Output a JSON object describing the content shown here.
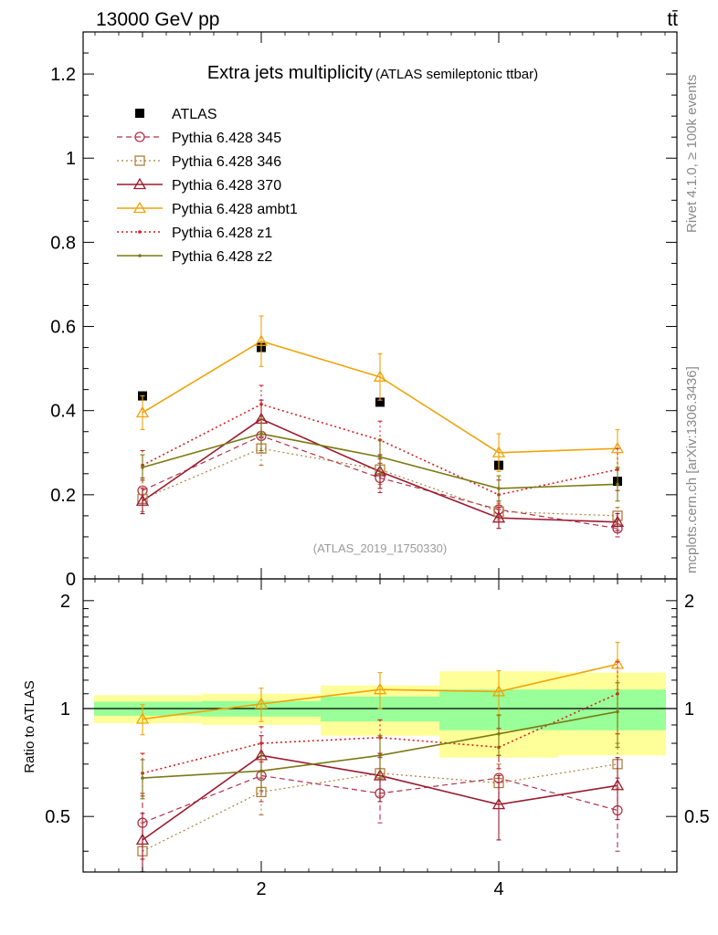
{
  "header": {
    "energy_label": "13000 GeV pp",
    "process_label": "tt̄"
  },
  "side_labels": {
    "rivet": "Rivet 4.1.0, ≥ 100k events",
    "mcplots": "mcplots.cern.ch [arXiv:1306.3436]"
  },
  "colors": {
    "atlas": "#000000",
    "p345": "#b2304a",
    "p346": "#b07f3b",
    "p370": "#9b1b30",
    "ambt1": "#f0a30a",
    "z1": "#d91e1e",
    "z2": "#7a7a14",
    "band_outer": "#ffff99",
    "band_inner": "#99ff99"
  },
  "chart_data": [
    {
      "type": "scatter",
      "title": "Extra jets multiplicity",
      "subtitle": "(ATLAS semileptonic ttbar)",
      "analysis_id": "(ATLAS_2019_I1750330)",
      "xlabel": "",
      "ylabel": "",
      "xlim": [
        0.5,
        5.5
      ],
      "ylim": [
        0,
        1.3
      ],
      "y_ticks": [
        0,
        0.2,
        0.4,
        0.6,
        0.8,
        1,
        1.2
      ],
      "y_tick_labels": [
        "0",
        "0.2",
        "0.4",
        "0.6",
        "0.8",
        "1",
        "1.2"
      ],
      "x": [
        1,
        2,
        3,
        4,
        5
      ],
      "series": [
        {
          "name": "ATLAS",
          "key": "atlas",
          "values": [
            0.435,
            0.55,
            0.42,
            0.27,
            0.232
          ],
          "err": [
            0,
            0,
            0,
            0,
            0
          ]
        },
        {
          "name": "Pythia 6.428 345",
          "key": "p345",
          "values": [
            0.21,
            0.34,
            0.24,
            0.165,
            0.12
          ],
          "err": [
            0.03,
            0.04,
            0.035,
            0.02,
            0.02
          ]
        },
        {
          "name": "Pythia 6.428 346",
          "key": "p346",
          "values": [
            0.19,
            0.31,
            0.26,
            0.16,
            0.15
          ],
          "err": [
            0.03,
            0.04,
            0.035,
            0.02,
            0.02
          ]
        },
        {
          "name": "Pythia 6.428 370",
          "key": "p370",
          "values": [
            0.185,
            0.38,
            0.255,
            0.145,
            0.135
          ],
          "err": [
            0.03,
            0.045,
            0.04,
            0.025,
            0.02
          ]
        },
        {
          "name": "Pythia 6.428 ambt1",
          "key": "ambt1",
          "values": [
            0.395,
            0.565,
            0.48,
            0.3,
            0.31
          ],
          "err": [
            0.04,
            0.06,
            0.055,
            0.045,
            0.045
          ]
        },
        {
          "name": "Pythia 6.428 z1",
          "key": "z1",
          "values": [
            0.27,
            0.415,
            0.33,
            0.2,
            0.26
          ],
          "err": [
            0.035,
            0.045,
            0.045,
            0.035,
            0.05
          ]
        },
        {
          "name": "Pythia 6.428 z2",
          "key": "z2",
          "values": [
            0.265,
            0.345,
            0.29,
            0.215,
            0.225
          ],
          "err": [
            0.03,
            0.04,
            0.04,
            0.03,
            0.04
          ]
        }
      ]
    },
    {
      "type": "scatter",
      "title": "",
      "xlabel": "",
      "ylabel": "Ratio to ATLAS",
      "xlim": [
        0.5,
        5.5
      ],
      "ylim": [
        0.35,
        2.3
      ],
      "y_ticks": [
        0.5,
        1,
        2
      ],
      "y_tick_labels": [
        "0.5",
        "1",
        "2"
      ],
      "x_ticks": [
        2,
        4
      ],
      "x_tick_labels": [
        "2",
        "4"
      ],
      "x": [
        1,
        2,
        3,
        4,
        5
      ],
      "reference_line": 1,
      "bands": {
        "bins": [
          [
            0.5,
            1.5
          ],
          [
            1.5,
            2.5
          ],
          [
            2.5,
            3.5
          ],
          [
            3.5,
            4.5
          ],
          [
            4.5,
            5.5
          ]
        ],
        "outer_low": [
          0.91,
          0.9,
          0.84,
          0.73,
          0.74
        ],
        "outer_high": [
          1.09,
          1.1,
          1.16,
          1.27,
          1.26
        ],
        "inner_low": [
          0.955,
          0.95,
          0.92,
          0.87,
          0.87
        ],
        "inner_high": [
          1.045,
          1.05,
          1.08,
          1.13,
          1.13
        ]
      },
      "series": [
        {
          "name": "Pythia 6.428 345",
          "key": "p345",
          "values": [
            0.48,
            0.65,
            0.58,
            0.64,
            0.52
          ],
          "err": [
            0.1,
            0.1,
            0.1,
            0.1,
            0.12
          ]
        },
        {
          "name": "Pythia 6.428 346",
          "key": "p346",
          "values": [
            0.4,
            0.585,
            0.66,
            0.62,
            0.7
          ],
          "err": [
            0.08,
            0.08,
            0.09,
            0.08,
            0.1
          ]
        },
        {
          "name": "Pythia 6.428 370",
          "key": "p370",
          "values": [
            0.43,
            0.74,
            0.65,
            0.54,
            0.61
          ],
          "err": [
            0.08,
            0.1,
            0.1,
            0.11,
            0.12
          ]
        },
        {
          "name": "Pythia 6.428 ambt1",
          "key": "ambt1",
          "values": [
            0.935,
            1.03,
            1.13,
            1.115,
            1.33
          ],
          "err": [
            0.09,
            0.11,
            0.13,
            0.16,
            0.2
          ]
        },
        {
          "name": "Pythia 6.428 z1",
          "key": "z1",
          "values": [
            0.66,
            0.8,
            0.83,
            0.78,
            1.1
          ],
          "err": [
            0.09,
            0.09,
            0.1,
            0.1,
            0.25
          ]
        },
        {
          "name": "Pythia 6.428 z2",
          "key": "z2",
          "values": [
            0.64,
            0.67,
            0.74,
            0.85,
            0.98
          ],
          "err": [
            0.08,
            0.08,
            0.1,
            0.11,
            0.2
          ]
        }
      ]
    }
  ]
}
